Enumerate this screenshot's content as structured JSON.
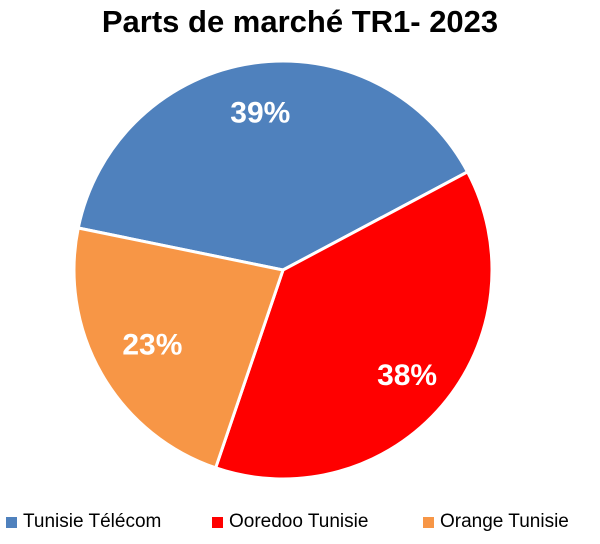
{
  "chart_data": {
    "type": "pie",
    "title": "Parts de marché TR1- 2023",
    "slices": [
      {
        "label": "Tunisie Télécom",
        "value": 39,
        "display": "39%",
        "color": "#4F81BD"
      },
      {
        "label": "Ooredoo Tunisie",
        "value": 38,
        "display": "38%",
        "color": "#FF0000"
      },
      {
        "label": "Orange Tunisie",
        "value": 23,
        "display": "23%",
        "color": "#F79646"
      }
    ],
    "legend_position": "bottom"
  }
}
